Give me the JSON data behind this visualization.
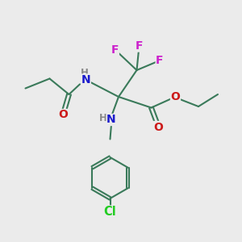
{
  "background_color": "#ebebeb",
  "bond_color": "#3a7a5a",
  "bond_width": 1.5,
  "atom_colors": {
    "N": "#1a1acc",
    "O": "#cc1a1a",
    "F": "#cc22cc",
    "Cl": "#22cc22",
    "H_grey": "#888888",
    "C": "#3a7a5a"
  },
  "font_size_atom": 9.5,
  "font_size_H": 8.5
}
